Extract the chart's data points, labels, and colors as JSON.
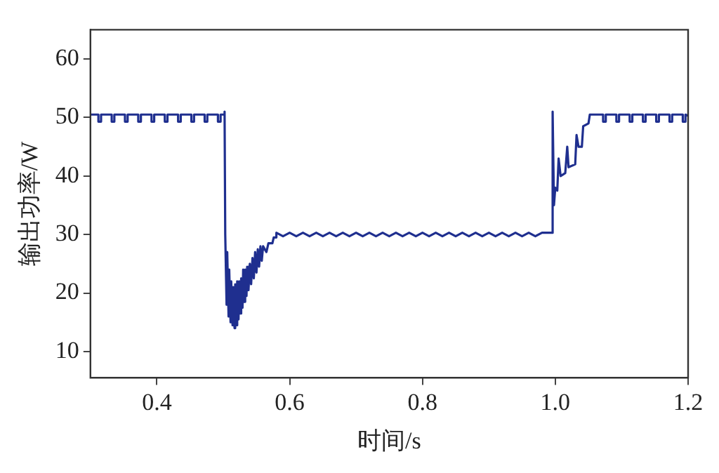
{
  "chart_data": {
    "type": "line",
    "xlabel": "时间/s",
    "ylabel": "输出功率/W",
    "xlim": [
      0.3,
      1.2
    ],
    "xticks": [
      0.4,
      0.6,
      0.8,
      {
        "value": 1,
        "label": "1.0"
      },
      1.2
    ],
    "ylim": [
      5.5,
      65
    ],
    "yticks": [
      10,
      20,
      30,
      40,
      50,
      60
    ],
    "grid": false,
    "legend": false,
    "marker": "none",
    "line_style": "solid",
    "series": [
      {
        "color": "#1f2f8f",
        "x": [
          0.3,
          0.312,
          0.312,
          0.316,
          0.316,
          0.332,
          0.332,
          0.336,
          0.336,
          0.352,
          0.352,
          0.356,
          0.356,
          0.372,
          0.372,
          0.376,
          0.376,
          0.392,
          0.392,
          0.396,
          0.396,
          0.412,
          0.412,
          0.416,
          0.416,
          0.432,
          0.432,
          0.436,
          0.436,
          0.452,
          0.452,
          0.456,
          0.456,
          0.472,
          0.472,
          0.476,
          0.476,
          0.492,
          0.492,
          0.496,
          0.496,
          0.502,
          0.502,
          0.503,
          0.505,
          0.506,
          0.508,
          0.509,
          0.511,
          0.512,
          0.514,
          0.515,
          0.517,
          0.518,
          0.52,
          0.521,
          0.523,
          0.524,
          0.526,
          0.527,
          0.529,
          0.53,
          0.532,
          0.533,
          0.535,
          0.536,
          0.538,
          0.54,
          0.542,
          0.544,
          0.546,
          0.548,
          0.55,
          0.552,
          0.554,
          0.556,
          0.558,
          0.56,
          0.565,
          0.568,
          0.574,
          0.576,
          0.58,
          0.58,
          0.59,
          0.6,
          0.61,
          0.62,
          0.63,
          0.64,
          0.65,
          0.66,
          0.67,
          0.68,
          0.69,
          0.7,
          0.71,
          0.72,
          0.73,
          0.74,
          0.75,
          0.76,
          0.77,
          0.78,
          0.79,
          0.8,
          0.81,
          0.82,
          0.83,
          0.84,
          0.85,
          0.86,
          0.87,
          0.88,
          0.89,
          0.9,
          0.91,
          0.92,
          0.93,
          0.94,
          0.95,
          0.96,
          0.97,
          0.98,
          0.995,
          0.996,
          0.998,
          1.0,
          1.003,
          1.005,
          1.008,
          1.015,
          1.018,
          1.02,
          1.03,
          1.032,
          1.035,
          1.04,
          1.042,
          1.05,
          1.052,
          1.072,
          1.072,
          1.076,
          1.076,
          1.092,
          1.092,
          1.096,
          1.096,
          1.112,
          1.112,
          1.116,
          1.116,
          1.132,
          1.132,
          1.136,
          1.136,
          1.152,
          1.152,
          1.156,
          1.156,
          1.172,
          1.172,
          1.176,
          1.176,
          1.192,
          1.192,
          1.196,
          1.196,
          1.2
        ],
        "values": [
          50.5,
          50.5,
          49.3,
          49.3,
          50.5,
          50.5,
          49.3,
          49.3,
          50.5,
          50.5,
          49.3,
          49.3,
          50.5,
          50.5,
          49.3,
          49.3,
          50.5,
          50.5,
          49.3,
          49.3,
          50.5,
          50.5,
          49.3,
          49.3,
          50.5,
          50.5,
          49.3,
          49.3,
          50.5,
          50.5,
          49.3,
          49.3,
          50.5,
          50.5,
          49.3,
          49.3,
          50.5,
          50.5,
          49.3,
          49.3,
          50.5,
          50.5,
          51,
          30,
          18,
          27,
          16,
          24,
          15,
          22,
          14.5,
          21,
          14,
          21.5,
          14.5,
          22,
          15.5,
          22,
          16.5,
          22.5,
          17.5,
          24,
          18.5,
          24,
          19.5,
          24.5,
          20.5,
          25,
          21.5,
          26,
          22.5,
          27,
          23.5,
          27.5,
          24.5,
          28,
          25.5,
          28,
          27,
          28.5,
          28.5,
          29.5,
          29.5,
          30.3,
          29.7,
          30.3,
          29.7,
          30.3,
          29.7,
          30.3,
          29.7,
          30.3,
          29.7,
          30.3,
          29.7,
          30.3,
          29.7,
          30.3,
          29.7,
          30.3,
          29.7,
          30.3,
          29.7,
          30.3,
          29.7,
          30.3,
          29.7,
          30.3,
          29.7,
          30.3,
          29.7,
          30.3,
          29.7,
          30.3,
          29.7,
          30.3,
          29.7,
          30.3,
          29.7,
          30.3,
          29.7,
          30.3,
          29.7,
          30.3,
          30.3,
          51,
          35,
          38,
          37.5,
          43,
          40,
          40.5,
          45,
          41.5,
          42,
          47,
          45,
          45,
          48.5,
          49,
          50.5,
          50.5,
          49.3,
          49.3,
          50.5,
          50.5,
          49.3,
          49.3,
          50.5,
          50.5,
          49.3,
          49.3,
          50.5,
          50.5,
          49.3,
          49.3,
          50.5,
          50.5,
          49.3,
          49.3,
          50.5,
          50.5,
          49.3,
          49.3,
          50.5,
          50.5,
          49.3,
          49.3,
          50.5,
          50.3
        ]
      }
    ]
  }
}
